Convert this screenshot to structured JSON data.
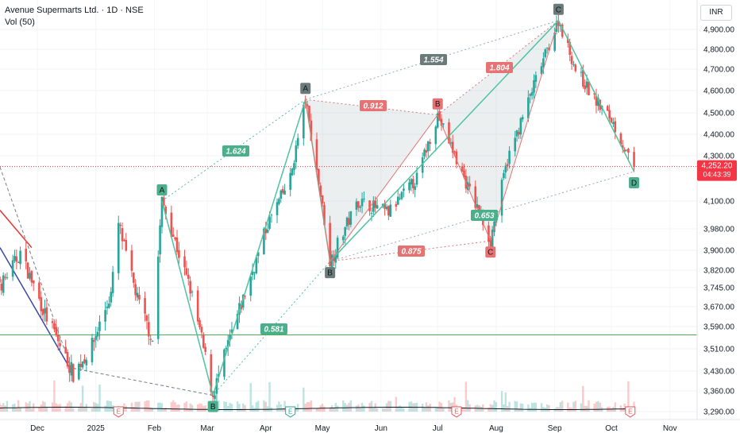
{
  "header": {
    "title": "Avenue Supermarts Ltd. · 1D · NSE",
    "volume": "Vol (50)"
  },
  "currency": "INR",
  "price_tag": {
    "price": "4,252.20",
    "countdown": "04:43:39"
  },
  "colors": {
    "up": "#26a69a",
    "down": "#ef5350",
    "pattern_line": "#4fc3a1",
    "pattern_label_red": "#e57373",
    "pattern_label_green": "#4caf8c",
    "support_line": "#4caf50",
    "trend_red": "#e53935",
    "trend_blue": "#3949ab",
    "price_tag": "#f23645"
  },
  "chart_data": {
    "type": "candlestick",
    "y_axis": {
      "range": [
        3260,
        4960
      ],
      "ticks": [
        3290,
        3360,
        3430,
        3510,
        3590,
        3670,
        3745,
        3820,
        3900,
        3980,
        4100,
        4300,
        4400,
        4500,
        4600,
        4700,
        4800,
        4900
      ],
      "tick_labels": [
        "3,290.00",
        "3,360.00",
        "3,430.00",
        "3,510.00",
        "3,590.00",
        "3,670.00",
        "3,745.00",
        "3,820.00",
        "3,900.00",
        "3,980.00",
        "4,100.00",
        "4,300.00",
        "4,400.00",
        "4,500.00",
        "4,600.00",
        "4,700.00",
        "4,800.00",
        "4,900.00"
      ]
    },
    "x_axis": {
      "labels": [
        "Dec",
        "2025",
        "Feb",
        "Mar",
        "Apr",
        "May",
        "Jun",
        "Jul",
        "Aug",
        "Sep",
        "Oct",
        "Nov"
      ]
    },
    "support_level": 3560,
    "current_price": 4252.2,
    "earnings_markers": [
      "E",
      "E",
      "E",
      "E"
    ],
    "pattern_points": [
      {
        "label": "A",
        "date": "2025-02-05",
        "price": 4100
      },
      {
        "label": "B",
        "date": "2025-03-04",
        "price": 3345
      },
      {
        "label": "A",
        "date": "2025-04-22",
        "price": 4560
      },
      {
        "label": "B",
        "date": "2025-05-05",
        "price": 3855
      },
      {
        "label": "B",
        "date": "2025-07-01",
        "price": 4490
      },
      {
        "label": "C",
        "date": "2025-07-29",
        "price": 3935
      },
      {
        "label": "C",
        "date": "2025-09-03",
        "price": 4945
      },
      {
        "label": "D",
        "date": "2025-10-13",
        "price": 4230
      }
    ],
    "ratios": [
      {
        "value": "1.624",
        "color": "green"
      },
      {
        "value": "0.581",
        "color": "green"
      },
      {
        "value": "1.554",
        "color": "grey"
      },
      {
        "value": "0.912",
        "color": "red"
      },
      {
        "value": "1.804",
        "color": "red"
      },
      {
        "value": "0.875",
        "color": "red"
      },
      {
        "value": "0.653",
        "color": "green"
      }
    ]
  }
}
